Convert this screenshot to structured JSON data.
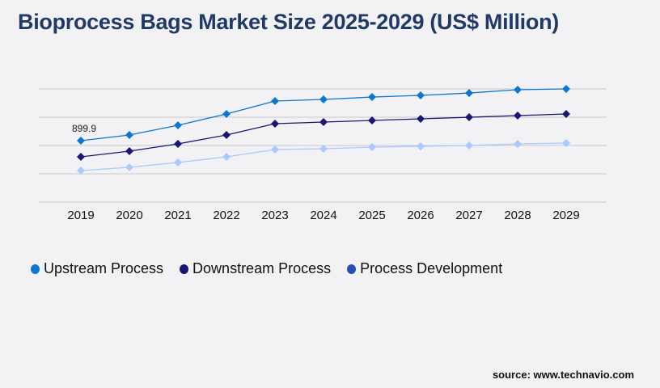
{
  "title": "Bioprocess Bags Market Size 2025-2029 (US$ Million)",
  "source": "source: www.technavio.com",
  "chart_data": {
    "type": "line",
    "title": "Bioprocess Bags Market Size 2025-2029 (US$ Million)",
    "categories": [
      "2019",
      "2020",
      "2021",
      "2022",
      "2023",
      "2024",
      "2025",
      "2026",
      "2027",
      "2028",
      "2029"
    ],
    "ylim": [
      0,
      1658
    ],
    "grid": true,
    "legend": "bottom-left",
    "series": [
      {
        "name": "Upstream Process",
        "color": "#0a78d0",
        "legend_color": "#0a78d0",
        "values": [
          899.9,
          983,
          1125,
          1291,
          1480,
          1504,
          1539,
          1563,
          1598,
          1646,
          1658
        ]
      },
      {
        "name": "Downstream Process",
        "color": "#1a1675",
        "legend_color": "#1a1675",
        "values": [
          663,
          746,
          853,
          983,
          1149,
          1172,
          1196,
          1220,
          1243,
          1267,
          1291
        ]
      },
      {
        "name": "Process Development",
        "color": "#a9c9ff",
        "legend_color": "#2350b8",
        "values": [
          462,
          509,
          580,
          663,
          770,
          782,
          805,
          817,
          829,
          853,
          864
        ]
      }
    ],
    "data_labels": [
      {
        "series": 0,
        "index": 0,
        "text": "899.9"
      }
    ]
  }
}
